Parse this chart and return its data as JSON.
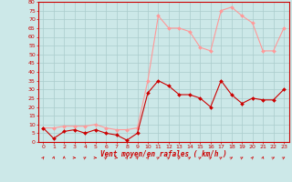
{
  "x": [
    0,
    1,
    2,
    3,
    4,
    5,
    6,
    7,
    8,
    9,
    10,
    11,
    12,
    13,
    14,
    15,
    16,
    17,
    18,
    19,
    20,
    21,
    22,
    23
  ],
  "wind_avg": [
    8,
    2,
    6,
    7,
    5,
    7,
    5,
    4,
    1,
    5,
    28,
    35,
    32,
    27,
    27,
    25,
    20,
    35,
    27,
    22,
    25,
    24,
    24,
    30
  ],
  "wind_gust": [
    8,
    8,
    9,
    9,
    9,
    10,
    8,
    7,
    7,
    8,
    35,
    72,
    65,
    65,
    63,
    54,
    52,
    75,
    77,
    72,
    68,
    52,
    52,
    65
  ],
  "wind_dir": [
    225,
    202,
    180,
    270,
    247,
    270,
    247,
    270,
    225,
    225,
    225,
    247,
    247,
    247,
    247,
    247,
    247,
    247,
    247,
    247,
    225,
    202,
    247,
    247
  ],
  "ylim": [
    0,
    80
  ],
  "yticks": [
    0,
    5,
    10,
    15,
    20,
    25,
    30,
    35,
    40,
    45,
    50,
    55,
    60,
    65,
    70,
    75,
    80
  ],
  "avg_color": "#cc0000",
  "gust_color": "#ff9999",
  "bg_color": "#cce8e8",
  "grid_color": "#aacccc",
  "xlabel": "Vent moyen/en rafales ( km/h )",
  "xlabel_color": "#cc0000",
  "tick_color": "#cc0000",
  "spine_color": "#cc0000"
}
